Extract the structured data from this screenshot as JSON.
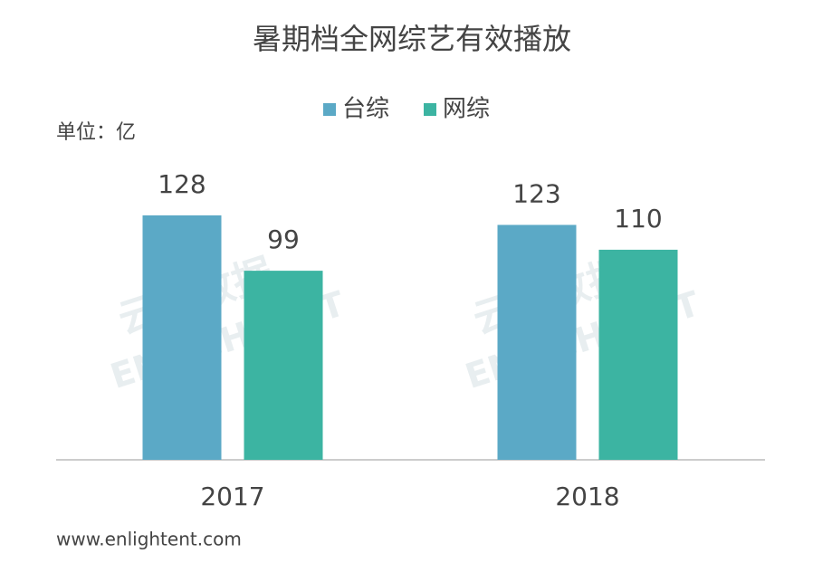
{
  "chart_data": {
    "type": "bar",
    "title": "暑期档全网综艺有效播放",
    "unit_label": "单位：亿",
    "categories": [
      "2017",
      "2018"
    ],
    "series": [
      {
        "name": "台综",
        "color": "#5ba9c6",
        "values": [
          128,
          123
        ]
      },
      {
        "name": "网综",
        "color": "#3cb4a2",
        "values": [
          99,
          110
        ]
      }
    ],
    "watermark": [
      "云合数据",
      "ENLIGHTENT"
    ],
    "source": "www.enlightent.com"
  }
}
